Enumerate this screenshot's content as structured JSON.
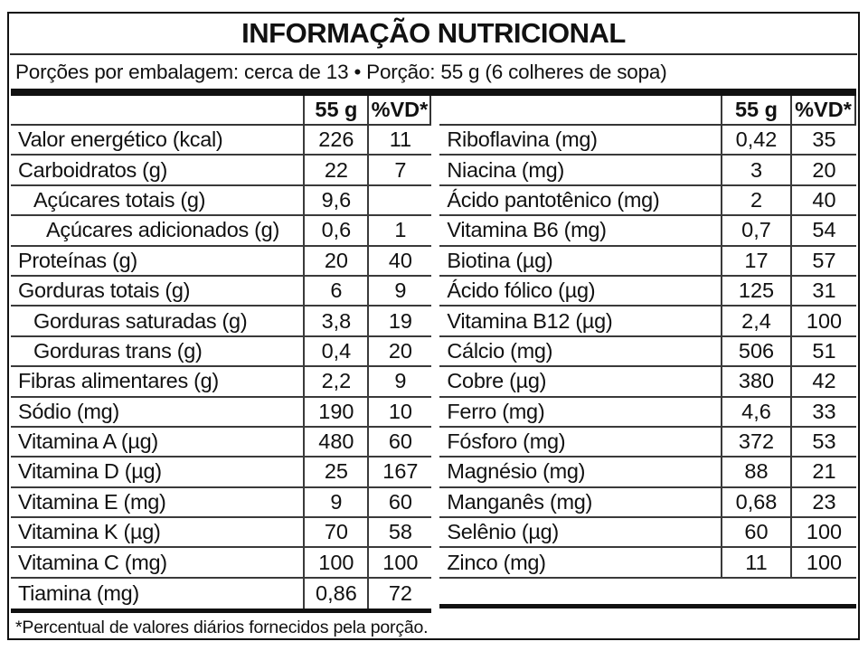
{
  "title": "INFORMAÇÃO NUTRICIONAL",
  "serving_line": "Porções por embalagem: cerca de 13 • Porção: 55 g (6 colheres de sopa)",
  "column_headers": {
    "amount": "55 g",
    "dv": "%VD*"
  },
  "footnote": "*Percentual de valores diários fornecidos pela porção.",
  "colors": {
    "text": "#111111",
    "line": "#3a3a3a",
    "bar": "#111111",
    "background": "#ffffff"
  },
  "left_table": {
    "rows": [
      {
        "label": "Valor energético (kcal)",
        "amount": "226",
        "dv": "11",
        "indent": 0
      },
      {
        "label": "Carboidratos (g)",
        "amount": "22",
        "dv": "7",
        "indent": 0
      },
      {
        "label": "Açúcares totais (g)",
        "amount": "9,6",
        "dv": "",
        "indent": 1
      },
      {
        "label": "Açúcares adicionados (g)",
        "amount": "0,6",
        "dv": "1",
        "indent": 2
      },
      {
        "label": "Proteínas (g)",
        "amount": "20",
        "dv": "40",
        "indent": 0
      },
      {
        "label": "Gorduras totais (g)",
        "amount": "6",
        "dv": "9",
        "indent": 0
      },
      {
        "label": "Gorduras saturadas (g)",
        "amount": "3,8",
        "dv": "19",
        "indent": 1
      },
      {
        "label": "Gorduras trans (g)",
        "amount": "0,4",
        "dv": "20",
        "indent": 1
      },
      {
        "label": "Fibras alimentares (g)",
        "amount": "2,2",
        "dv": "9",
        "indent": 0
      },
      {
        "label": "Sódio (mg)",
        "amount": "190",
        "dv": "10",
        "indent": 0
      },
      {
        "label": "Vitamina A (µg)",
        "amount": "480",
        "dv": "60",
        "indent": 0
      },
      {
        "label": "Vitamina D (µg)",
        "amount": "25",
        "dv": "167",
        "indent": 0
      },
      {
        "label": "Vitamina E (mg)",
        "amount": "9",
        "dv": "60",
        "indent": 0
      },
      {
        "label": "Vitamina K (µg)",
        "amount": "70",
        "dv": "58",
        "indent": 0
      },
      {
        "label": "Vitamina C (mg)",
        "amount": "100",
        "dv": "100",
        "indent": 0
      },
      {
        "label": "Tiamina (mg)",
        "amount": "0,86",
        "dv": "72",
        "indent": 0
      }
    ]
  },
  "right_table": {
    "rows": [
      {
        "label": "Riboflavina (mg)",
        "amount": "0,42",
        "dv": "35",
        "indent": 0
      },
      {
        "label": "Niacina (mg)",
        "amount": "3",
        "dv": "20",
        "indent": 0
      },
      {
        "label": "Ácido pantotênico (mg)",
        "amount": "2",
        "dv": "40",
        "indent": 0
      },
      {
        "label": "Vitamina B6 (mg)",
        "amount": "0,7",
        "dv": "54",
        "indent": 0
      },
      {
        "label": "Biotina (µg)",
        "amount": "17",
        "dv": "57",
        "indent": 0
      },
      {
        "label": "Ácido fólico (µg)",
        "amount": "125",
        "dv": "31",
        "indent": 0
      },
      {
        "label": "Vitamina B12 (µg)",
        "amount": "2,4",
        "dv": "100",
        "indent": 0
      },
      {
        "label": "Cálcio (mg)",
        "amount": "506",
        "dv": "51",
        "indent": 0
      },
      {
        "label": "Cobre (µg)",
        "amount": "380",
        "dv": "42",
        "indent": 0
      },
      {
        "label": "Ferro (mg)",
        "amount": "4,6",
        "dv": "33",
        "indent": 0
      },
      {
        "label": "Fósforo (mg)",
        "amount": "372",
        "dv": "53",
        "indent": 0
      },
      {
        "label": "Magnésio (mg)",
        "amount": "88",
        "dv": "21",
        "indent": 0
      },
      {
        "label": "Manganês (mg)",
        "amount": "0,68",
        "dv": "23",
        "indent": 0
      },
      {
        "label": "Selênio (µg)",
        "amount": "60",
        "dv": "100",
        "indent": 0
      },
      {
        "label": "Zinco (mg)",
        "amount": "11",
        "dv": "100",
        "indent": 0
      }
    ]
  }
}
